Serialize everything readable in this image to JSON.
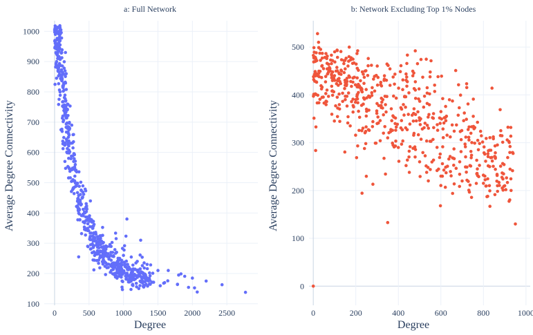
{
  "chart_data": [
    {
      "type": "scatter",
      "title": "a: Full Network",
      "xlabel": "Degree",
      "ylabel": "Average Degree Connectivity",
      "xlim": [
        -150,
        2950
      ],
      "ylim": [
        95,
        1035
      ],
      "xticks": [
        0,
        500,
        1000,
        1500,
        2000,
        2500
      ],
      "yticks": [
        100,
        200,
        300,
        400,
        500,
        600,
        700,
        800,
        900,
        1000
      ],
      "color": "#636efa",
      "points_summary": "approx. 900 nodes; connectivity falls from ~1010 at degree 0 to ~140 at degree ~2770",
      "anchor_points": [
        [
          5,
          1010
        ],
        [
          10,
          960
        ],
        [
          20,
          930
        ],
        [
          30,
          900
        ],
        [
          50,
          870
        ],
        [
          80,
          800
        ],
        [
          120,
          720
        ],
        [
          200,
          650
        ],
        [
          300,
          560
        ],
        [
          400,
          450
        ],
        [
          500,
          380
        ],
        [
          600,
          330
        ],
        [
          700,
          300
        ],
        [
          800,
          290
        ],
        [
          900,
          270
        ],
        [
          1000,
          260
        ],
        [
          1200,
          240
        ],
        [
          1300,
          235
        ],
        [
          1500,
          210
        ],
        [
          1650,
          210
        ],
        [
          1800,
          195
        ],
        [
          2000,
          185
        ],
        [
          2200,
          175
        ],
        [
          2430,
          163
        ],
        [
          2770,
          138
        ],
        [
          1250,
          310
        ],
        [
          1050,
          380
        ],
        [
          480,
          290
        ],
        [
          350,
          255
        ],
        [
          980,
          175
        ],
        [
          1060,
          230
        ]
      ]
    },
    {
      "type": "scatter",
      "title": "b: Network Excluding Top 1% Nodes",
      "xlabel": "Degree",
      "ylabel": "Average Degree Connectivity",
      "xlim": [
        -20,
        1020
      ],
      "ylim": [
        -40,
        555
      ],
      "xticks": [
        0,
        200,
        400,
        600,
        800,
        1000
      ],
      "yticks": [
        0,
        100,
        200,
        300,
        400,
        500
      ],
      "color": "#ef553b",
      "points_summary": "approx. 700 nodes; connectivity falls from ~470 at low degree to ~200 near degree 950",
      "anchor_points": [
        [
          0,
          0
        ],
        [
          20,
          528
        ],
        [
          25,
          510
        ],
        [
          10,
          470
        ],
        [
          40,
          460
        ],
        [
          80,
          450
        ],
        [
          100,
          440
        ],
        [
          150,
          420
        ],
        [
          200,
          390
        ],
        [
          250,
          370
        ],
        [
          300,
          340
        ],
        [
          350,
          310
        ],
        [
          400,
          290
        ],
        [
          450,
          270
        ],
        [
          500,
          260
        ],
        [
          600,
          230
        ],
        [
          700,
          220
        ],
        [
          800,
          215
        ],
        [
          900,
          210
        ],
        [
          950,
          130
        ],
        [
          350,
          133
        ],
        [
          930,
          200
        ],
        [
          880,
          315
        ],
        [
          480,
          410
        ],
        [
          600,
          365
        ]
      ]
    }
  ]
}
